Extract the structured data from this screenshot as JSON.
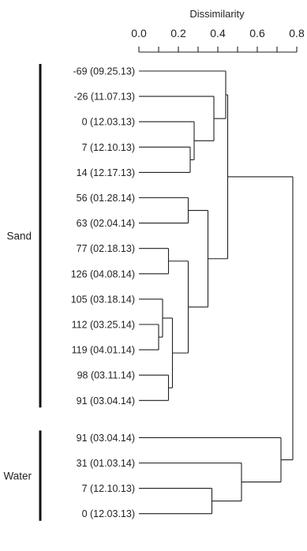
{
  "axis": {
    "title": "Dissimilarity",
    "ticks": [
      0.0,
      0.2,
      0.4,
      0.6,
      0.8
    ],
    "tick_labels": [
      "0.0",
      "0.2",
      "0.4",
      "0.6",
      "0.8"
    ],
    "range": [
      0,
      0.8
    ]
  },
  "groups": [
    {
      "label": "Sand",
      "first_leaf": 0,
      "last_leaf": 13
    },
    {
      "label": "Water",
      "first_leaf": 14,
      "last_leaf": 17
    }
  ],
  "leaves": [
    "-69 (09.25.13)",
    "-26 (11.07.13)",
    "0 (12.03.13)",
    "7 (12.10.13)",
    "14 (12.17.13)",
    "56 (01.28.14)",
    "63 (02.04.14)",
    "77 (02.18.13)",
    "126 (04.08.14)",
    "105 (03.18.14)",
    "112 (03.25.14)",
    "119 (04.01.14)",
    "98 (03.11.14)",
    "91 (03.04.14)",
    "91 (03.04.14)",
    "31 (01.03.14)",
    "7 (12.10.13)",
    "0 (12.03.13)"
  ],
  "chart_data": {
    "type": "dendrogram",
    "xlabel": "Dissimilarity",
    "xlim": [
      0,
      0.8
    ],
    "merges": [
      {
        "id": "m1",
        "children": [
          "L10",
          "L11"
        ],
        "height": 0.1
      },
      {
        "id": "m2",
        "children": [
          "L9",
          "m1"
        ],
        "height": 0.12
      },
      {
        "id": "m3",
        "children": [
          "L12",
          "L13"
        ],
        "height": 0.15
      },
      {
        "id": "m4",
        "children": [
          "m2",
          "m3"
        ],
        "height": 0.17
      },
      {
        "id": "m5",
        "children": [
          "L7",
          "L8"
        ],
        "height": 0.15
      },
      {
        "id": "m6",
        "children": [
          "m5",
          "m4"
        ],
        "height": 0.25
      },
      {
        "id": "m7",
        "children": [
          "L5",
          "L6"
        ],
        "height": 0.25
      },
      {
        "id": "m8",
        "children": [
          "m7",
          "m6"
        ],
        "height": 0.35
      },
      {
        "id": "m9",
        "children": [
          "L3",
          "L4"
        ],
        "height": 0.26
      },
      {
        "id": "m10",
        "children": [
          "L2",
          "m9"
        ],
        "height": 0.28
      },
      {
        "id": "m11",
        "children": [
          "L1",
          "m10"
        ],
        "height": 0.38
      },
      {
        "id": "m12",
        "children": [
          "L0",
          "m11"
        ],
        "height": 0.44
      },
      {
        "id": "m13",
        "children": [
          "m12",
          "m8"
        ],
        "height": 0.45
      },
      {
        "id": "m14",
        "children": [
          "L16",
          "L17"
        ],
        "height": 0.37
      },
      {
        "id": "m15",
        "children": [
          "L15",
          "m14"
        ],
        "height": 0.52
      },
      {
        "id": "m16",
        "children": [
          "L14",
          "m15"
        ],
        "height": 0.72
      },
      {
        "id": "m17",
        "children": [
          "m13",
          "m16"
        ],
        "height": 0.78
      }
    ]
  }
}
